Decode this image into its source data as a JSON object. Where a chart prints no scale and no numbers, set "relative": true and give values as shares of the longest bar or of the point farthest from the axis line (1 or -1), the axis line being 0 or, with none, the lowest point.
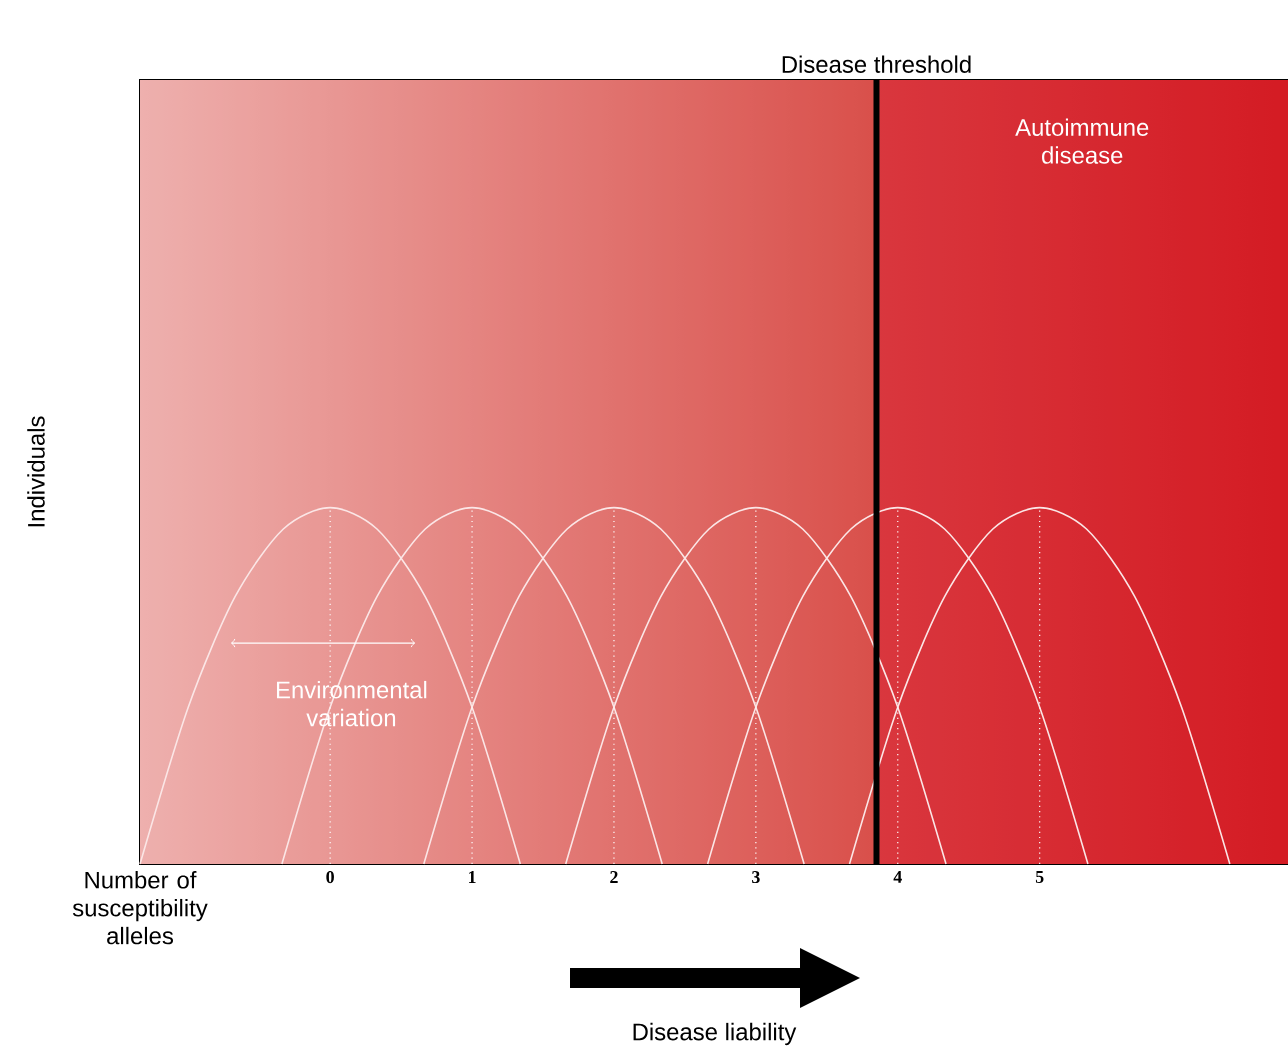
{
  "chart_data": {
    "type": "line",
    "relative": true,
    "ylabel": "Individuals",
    "xlim": [
      -1.34,
      6.75
    ],
    "xticks": [
      0,
      1,
      2,
      3,
      4,
      5
    ],
    "marker": "none",
    "line_style": "solid",
    "series": [
      {
        "color": "#fbe6e6",
        "x": [
          -1.34,
          -1.0,
          -0.67,
          -0.33,
          0,
          0.33,
          0.67,
          1.0,
          1.34
        ],
        "values": [
          0,
          0.44,
          0.75,
          0.94,
          1,
          0.94,
          0.75,
          0.44,
          0
        ]
      },
      {
        "color": "#fbe6e6",
        "x": [
          -0.34,
          0.0,
          0.33,
          0.67,
          1,
          1.33,
          1.67,
          2.0,
          2.34
        ],
        "values": [
          0,
          0.44,
          0.75,
          0.94,
          1,
          0.94,
          0.75,
          0.44,
          0
        ]
      },
      {
        "color": "#fbe6e6",
        "x": [
          0.66,
          1.0,
          1.33,
          1.67,
          2,
          2.33,
          2.67,
          3.0,
          3.34
        ],
        "values": [
          0,
          0.44,
          0.75,
          0.94,
          1,
          0.94,
          0.75,
          0.44,
          0
        ]
      },
      {
        "color": "#fbe6e6",
        "x": [
          1.66,
          2.0,
          2.33,
          2.67,
          3,
          3.33,
          3.67,
          4.0,
          4.34
        ],
        "values": [
          0,
          0.44,
          0.75,
          0.94,
          1,
          0.94,
          0.75,
          0.44,
          0
        ]
      },
      {
        "color": "#fbe6e6",
        "x": [
          2.66,
          3.0,
          3.33,
          3.67,
          4,
          4.33,
          4.67,
          5.0,
          5.34
        ],
        "values": [
          0,
          0.44,
          0.75,
          0.94,
          1,
          0.94,
          0.75,
          0.44,
          0
        ]
      },
      {
        "color": "#fbe6e6",
        "x": [
          3.66,
          4.0,
          4.33,
          4.67,
          5,
          5.33,
          5.67,
          6.0,
          6.34
        ],
        "values": [
          0,
          0.44,
          0.75,
          0.94,
          1,
          0.94,
          0.75,
          0.44,
          0
        ]
      }
    ],
    "bands": [
      {
        "axis": "x",
        "from": -1.34,
        "to": 3.85,
        "color": "#d9504b"
      },
      {
        "axis": "x",
        "from": 3.85,
        "to": 6.75,
        "color": "#d41c24",
        "label": "Autoimmune disease"
      }
    ],
    "ref_lines": [
      {
        "axis": "x",
        "value": 3.85,
        "label": "Disease threshold",
        "color": "#000000",
        "line_style": "solid"
      },
      {
        "axis": "x",
        "value": 0,
        "color": "#ffffff",
        "line_style": "dotted"
      },
      {
        "axis": "x",
        "value": 1,
        "color": "#ffffff",
        "line_style": "dotted"
      },
      {
        "axis": "x",
        "value": 2,
        "color": "#ffffff",
        "line_style": "dotted"
      },
      {
        "axis": "x",
        "value": 3,
        "color": "#ffffff",
        "line_style": "dotted"
      },
      {
        "axis": "x",
        "value": 4,
        "color": "#ffffff",
        "line_style": "dotted"
      },
      {
        "axis": "x",
        "value": 5,
        "color": "#ffffff",
        "line_style": "dotted"
      }
    ],
    "annotations": [
      "Number of susceptibility alleles",
      "Disease liability",
      {
        "text": "Environmental variation",
        "x": 0,
        "y": 0.45
      }
    ]
  }
}
